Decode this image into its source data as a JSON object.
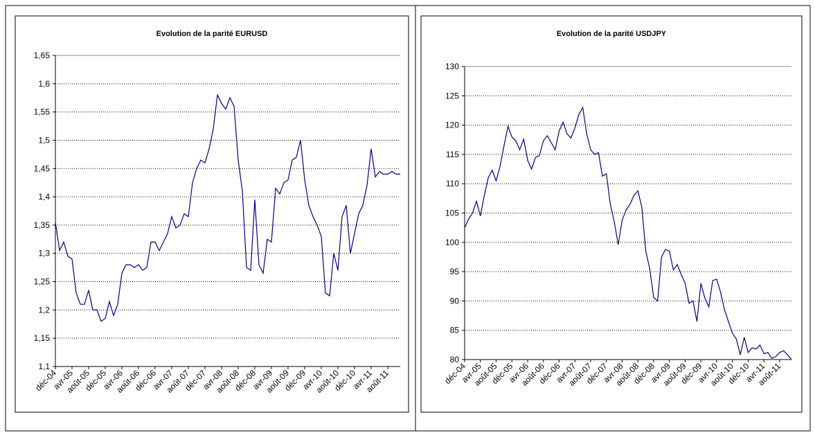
{
  "chart_data": [
    {
      "type": "line",
      "title": "Evolution de la parité EURUSD",
      "categories": [
        "déc-04",
        null,
        null,
        null,
        "avr-05",
        null,
        null,
        null,
        "août-05",
        null,
        null,
        null,
        "déc-05",
        null,
        null,
        null,
        "avr-06",
        null,
        null,
        null,
        "août-06",
        null,
        null,
        null,
        "déc-06",
        null,
        null,
        null,
        "avr-07",
        null,
        null,
        null,
        "août-07",
        null,
        null,
        null,
        "déc-07",
        null,
        null,
        null,
        "avr-08",
        null,
        null,
        null,
        "août-08",
        null,
        null,
        null,
        "déc-08",
        null,
        null,
        null,
        "avr-09",
        null,
        null,
        null,
        "août-09",
        null,
        null,
        null,
        "déc-09",
        null,
        null,
        null,
        "avr-10",
        null,
        null,
        null,
        "août-10",
        null,
        null,
        null,
        "déc-10",
        null,
        null,
        null,
        "avr-11",
        null,
        null,
        null,
        "août-11",
        null,
        null,
        null
      ],
      "values": [
        1.355,
        1.305,
        1.32,
        1.295,
        1.29,
        1.23,
        1.21,
        1.21,
        1.235,
        1.2,
        1.2,
        1.18,
        1.185,
        1.215,
        1.19,
        1.21,
        1.265,
        1.28,
        1.28,
        1.275,
        1.28,
        1.27,
        1.275,
        1.32,
        1.32,
        1.305,
        1.32,
        1.335,
        1.365,
        1.345,
        1.35,
        1.37,
        1.365,
        1.425,
        1.45,
        1.465,
        1.46,
        1.485,
        1.52,
        1.58,
        1.565,
        1.555,
        1.575,
        1.56,
        1.465,
        1.41,
        1.275,
        1.27,
        1.395,
        1.28,
        1.265,
        1.325,
        1.32,
        1.415,
        1.405,
        1.425,
        1.43,
        1.465,
        1.47,
        1.5,
        1.43,
        1.385,
        1.365,
        1.35,
        1.33,
        1.23,
        1.225,
        1.3,
        1.27,
        1.365,
        1.385,
        1.3,
        1.335,
        1.37,
        1.385,
        1.42,
        1.485,
        1.435,
        1.445,
        1.44,
        1.44,
        1.445,
        1.44,
        1.44
      ],
      "color": "#000080",
      "ylim": [
        1.1,
        1.65
      ],
      "yticks": [
        {
          "value": 1.1,
          "label": "1,1"
        },
        {
          "value": 1.15,
          "label": "1,15"
        },
        {
          "value": 1.2,
          "label": "1,2"
        },
        {
          "value": 1.25,
          "label": "1,25"
        },
        {
          "value": 1.3,
          "label": "1,3"
        },
        {
          "value": 1.35,
          "label": "1,35"
        },
        {
          "value": 1.4,
          "label": "1,4"
        },
        {
          "value": 1.45,
          "label": "1,45"
        },
        {
          "value": 1.5,
          "label": "1,5"
        },
        {
          "value": 1.55,
          "label": "1,55"
        },
        {
          "value": 1.6,
          "label": "1,6"
        },
        {
          "value": 1.65,
          "label": "1,65"
        }
      ],
      "grid": true
    },
    {
      "type": "line",
      "title": "Evolution de la parité USDJPY",
      "categories": [
        "déc-04",
        null,
        null,
        null,
        "avr-05",
        null,
        null,
        null,
        "août-05",
        null,
        null,
        null,
        "déc-05",
        null,
        null,
        null,
        "avr-06",
        null,
        null,
        null,
        "août-06",
        null,
        null,
        null,
        "déc-06",
        null,
        null,
        null,
        "avr-07",
        null,
        null,
        null,
        "août-07",
        null,
        null,
        null,
        "déc-07",
        null,
        null,
        null,
        "avr-08",
        null,
        null,
        null,
        "août-08",
        null,
        null,
        null,
        "déc-08",
        null,
        null,
        null,
        "avr-09",
        null,
        null,
        null,
        "août-09",
        null,
        null,
        null,
        "déc-09",
        null,
        null,
        null,
        "avr-10",
        null,
        null,
        null,
        "août-10",
        null,
        null,
        null,
        "déc-10",
        null,
        null,
        null,
        "avr-11",
        null,
        null,
        null,
        "août-11",
        null,
        null,
        null
      ],
      "values": [
        102.5,
        104,
        105,
        107,
        104.5,
        108,
        111,
        112.3,
        110.5,
        113,
        116.5,
        119.8,
        118,
        117.3,
        115.8,
        117.6,
        114,
        112.5,
        114.5,
        114.8,
        117.3,
        118.2,
        117,
        115.8,
        119,
        120.5,
        118.5,
        117.8,
        119.5,
        121.8,
        123,
        118.5,
        115.8,
        115,
        115.3,
        111.3,
        111.7,
        106.5,
        103.5,
        99.6,
        103.8,
        105.5,
        106.5,
        108,
        108.8,
        106,
        98.5,
        95.5,
        90.6,
        90,
        97.5,
        98.8,
        98.5,
        95.3,
        96.2,
        94.5,
        93,
        89.6,
        90,
        86.5,
        93,
        90.5,
        89,
        93.5,
        93.7,
        91.5,
        88.5,
        86.5,
        84.5,
        83.5,
        80.8,
        83.8,
        81.2,
        82,
        81.8,
        82.5,
        81,
        81.2,
        80.2,
        80.5,
        81.2,
        81.5,
        80.8,
        80
      ],
      "color": "#000080",
      "ylim": [
        80,
        130
      ],
      "yticks": [
        80,
        85,
        90,
        95,
        100,
        105,
        110,
        115,
        120,
        125,
        130
      ],
      "grid": true
    }
  ]
}
